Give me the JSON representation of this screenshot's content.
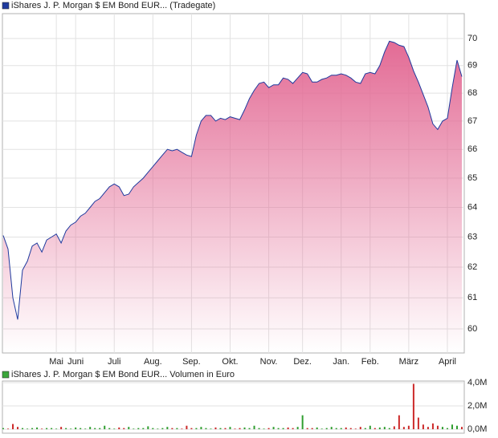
{
  "chart_data": [
    {
      "type": "area",
      "log_scale": true,
      "grid": true,
      "categories": [
        null,
        null,
        null,
        null,
        null,
        null,
        null,
        null,
        null,
        null,
        null,
        "Mai",
        null,
        null,
        null,
        "Juni",
        null,
        null,
        null,
        null,
        null,
        null,
        null,
        "Juli",
        null,
        null,
        null,
        null,
        null,
        null,
        null,
        "Aug.",
        null,
        null,
        null,
        null,
        null,
        null,
        null,
        "Sep.",
        null,
        null,
        null,
        null,
        null,
        null,
        null,
        "Okt.",
        null,
        null,
        null,
        null,
        null,
        null,
        null,
        "Nov.",
        null,
        null,
        null,
        null,
        null,
        null,
        "Dez.",
        null,
        null,
        null,
        null,
        null,
        null,
        null,
        "Jan.",
        null,
        null,
        null,
        null,
        null,
        "Feb.",
        null,
        null,
        null,
        null,
        null,
        null,
        null,
        "März",
        null,
        null,
        null,
        null,
        null,
        null,
        null,
        "April",
        null,
        null,
        null
      ],
      "series": [
        {
          "name": "iShares J. P. Morgan $ EM Bond EUR... (Tradegate)",
          "color": "#1f3a9e",
          "fill_color": "#e36b95",
          "values": [
            63.05,
            62.6,
            61.0,
            60.3,
            61.9,
            62.2,
            62.7,
            62.8,
            62.5,
            62.9,
            63.0,
            63.1,
            62.8,
            63.2,
            63.4,
            63.5,
            63.7,
            63.8,
            64.0,
            64.2,
            64.3,
            64.5,
            64.7,
            64.8,
            64.7,
            64.4,
            64.45,
            64.7,
            64.85,
            65.0,
            65.2,
            65.4,
            65.6,
            65.8,
            66.0,
            65.95,
            66.0,
            65.9,
            65.8,
            65.75,
            66.5,
            67.0,
            67.2,
            67.2,
            67.0,
            67.1,
            67.05,
            67.15,
            67.1,
            67.05,
            67.4,
            67.8,
            68.1,
            68.35,
            68.4,
            68.2,
            68.3,
            68.3,
            68.55,
            68.5,
            68.35,
            68.55,
            68.75,
            68.7,
            68.4,
            68.4,
            68.5,
            68.55,
            68.65,
            68.65,
            68.7,
            68.65,
            68.55,
            68.4,
            68.35,
            68.7,
            68.75,
            68.7,
            69.0,
            69.5,
            69.9,
            69.85,
            69.75,
            69.7,
            69.3,
            68.8,
            68.4,
            67.95,
            67.5,
            66.9,
            66.7,
            67.0,
            67.1,
            68.2,
            69.2,
            68.6
          ]
        }
      ],
      "ylim": [
        59.24,
        70.93
      ],
      "yticks": [
        60,
        61,
        62,
        63,
        64,
        65,
        66,
        67,
        68,
        69,
        70
      ]
    },
    {
      "type": "bar",
      "grid": true,
      "up_color": "#2f9e2f",
      "down_color": "#cc2a2a",
      "series": [
        {
          "name": "iShares J. P. Morgan $ EM Bond EUR... Volumen in Euro",
          "color": "#3aa63a",
          "values": [
            0.1,
            0.05,
            0.45,
            0.2,
            0.1,
            0.05,
            0.1,
            0.15,
            0.05,
            0.1,
            0.1,
            0.05,
            0.2,
            0.1,
            0.05,
            0.15,
            0.1,
            0.05,
            0.2,
            0.1,
            0.1,
            0.3,
            0.1,
            0.05,
            0.15,
            0.1,
            0.2,
            0.05,
            0.1,
            0.1,
            0.25,
            0.1,
            0.05,
            0.1,
            0.2,
            0.1,
            0.1,
            0.05,
            0.3,
            0.1,
            0.1,
            0.2,
            0.1,
            0.05,
            0.15,
            0.1,
            0.1,
            0.2,
            0.05,
            0.1,
            0.15,
            0.1,
            0.3,
            0.1,
            0.05,
            0.1,
            0.2,
            0.1,
            0.1,
            0.15,
            0.1,
            0.2,
            1.2,
            0.1,
            0.1,
            0.15,
            0.05,
            0.1,
            0.2,
            0.1,
            0.1,
            0.15,
            0.1,
            0.05,
            0.2,
            0.1,
            0.3,
            0.1,
            0.15,
            0.2,
            0.1,
            0.25,
            1.2,
            0.2,
            0.3,
            3.9,
            1.0,
            0.4,
            0.2,
            0.5,
            0.3,
            0.2,
            0.1,
            0.4,
            0.3,
            0.2
          ]
        }
      ],
      "ylim": [
        -0.34,
        4.14
      ],
      "yticks": [
        {
          "value": 0,
          "label": "0,0M"
        },
        {
          "value": 2,
          "label": "2,0M"
        },
        {
          "value": 4,
          "label": "4,0M"
        }
      ]
    }
  ]
}
